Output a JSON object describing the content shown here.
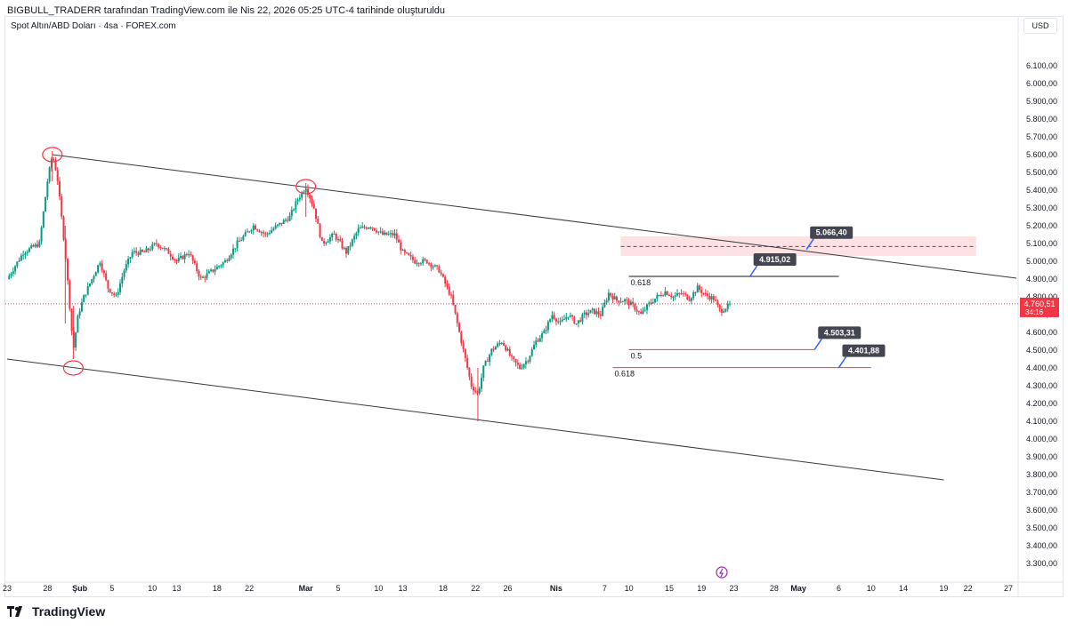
{
  "header": {
    "credit": "BIGBULL_TRADERR tarafından TradingView.com ile Nis 22, 2026 05:25 UTC-4 tarihinde oluşturuldu",
    "symbol_title": "Spot Altın/ABD Doları · 4sa · FOREX.com",
    "currency": "USD"
  },
  "footer": {
    "brand": "TradingView"
  },
  "colors": {
    "up": "#089981",
    "down": "#f23645",
    "trendline": "#3a3a3a",
    "zone_fill": "#fde2e4",
    "label_bg": "#434651",
    "label_pointer": "#2962ff",
    "price_tag": "#f23645",
    "grid_text": "#131722"
  },
  "chart_data": {
    "type": "candlestick",
    "title": "",
    "xlabel": "",
    "ylabel": "",
    "ylim": [
      3250,
      6200
    ],
    "grid": false,
    "y_ticks": [
      "6.100,00",
      "6.000,00",
      "5.900,00",
      "5.800,00",
      "5.700,00",
      "5.600,00",
      "5.500,00",
      "5.400,00",
      "5.300,00",
      "5.200,00",
      "5.100,00",
      "5.000,00",
      "4.900,00",
      "4.800,00",
      "4.700,00",
      "4.600,00",
      "4.500,00",
      "4.400,00",
      "4.300,00",
      "4.200,00",
      "4.100,00",
      "4.000,00",
      "3.900,00",
      "3.800,00",
      "3.700,00",
      "3.600,00",
      "3.500,00",
      "3.400,00",
      "3.300,00"
    ],
    "x_ticks": [
      {
        "label": "23",
        "day": 0
      },
      {
        "label": "28",
        "day": 5
      },
      {
        "label": "Şub",
        "day": 9,
        "bold": true
      },
      {
        "label": "5",
        "day": 13
      },
      {
        "label": "10",
        "day": 18
      },
      {
        "label": "13",
        "day": 21
      },
      {
        "label": "18",
        "day": 26
      },
      {
        "label": "22",
        "day": 30
      },
      {
        "label": "Mar",
        "day": 37,
        "bold": true
      },
      {
        "label": "5",
        "day": 41
      },
      {
        "label": "10",
        "day": 46
      },
      {
        "label": "13",
        "day": 49
      },
      {
        "label": "18",
        "day": 54
      },
      {
        "label": "22",
        "day": 58
      },
      {
        "label": "26",
        "day": 62
      },
      {
        "label": "Nis",
        "day": 68,
        "bold": true
      },
      {
        "label": "7",
        "day": 74
      },
      {
        "label": "10",
        "day": 77
      },
      {
        "label": "15",
        "day": 82
      },
      {
        "label": "19",
        "day": 86
      },
      {
        "label": "23",
        "day": 90
      },
      {
        "label": "28",
        "day": 95
      },
      {
        "label": "May",
        "day": 98,
        "bold": true
      },
      {
        "label": "6",
        "day": 103
      },
      {
        "label": "10",
        "day": 107
      },
      {
        "label": "14",
        "day": 111
      },
      {
        "label": "19",
        "day": 116
      },
      {
        "label": "22",
        "day": 119
      },
      {
        "label": "27",
        "day": 124
      }
    ],
    "price_path": [
      [
        0,
        4900
      ],
      [
        2,
        5050
      ],
      [
        4,
        5100
      ],
      [
        5,
        5450
      ],
      [
        5.6,
        5600
      ],
      [
        6.2,
        5480
      ],
      [
        7.2,
        5050
      ],
      [
        8.2,
        4500
      ],
      [
        8.8,
        4700
      ],
      [
        9.5,
        4800
      ],
      [
        10.5,
        4900
      ],
      [
        11.5,
        5000
      ],
      [
        12.5,
        4850
      ],
      [
        13.5,
        4800
      ],
      [
        14.5,
        4950
      ],
      [
        15.5,
        5050
      ],
      [
        17,
        5050
      ],
      [
        18.5,
        5100
      ],
      [
        20,
        5050
      ],
      [
        21,
        5000
      ],
      [
        22.5,
        5050
      ],
      [
        24,
        4900
      ],
      [
        25.5,
        4950
      ],
      [
        27,
        5000
      ],
      [
        28.5,
        5100
      ],
      [
        29.5,
        5150
      ],
      [
        30.5,
        5200
      ],
      [
        32,
        5150
      ],
      [
        33.5,
        5200
      ],
      [
        35,
        5250
      ],
      [
        36,
        5350
      ],
      [
        37,
        5420
      ],
      [
        38,
        5300
      ],
      [
        39,
        5100
      ],
      [
        40.5,
        5150
      ],
      [
        42,
        5050
      ],
      [
        43.5,
        5180
      ],
      [
        45,
        5200
      ],
      [
        46.5,
        5150
      ],
      [
        48,
        5150
      ],
      [
        49,
        5050
      ],
      [
        50.5,
        5000
      ],
      [
        52,
        5000
      ],
      [
        53.5,
        4950
      ],
      [
        55,
        4800
      ],
      [
        56.5,
        4500
      ],
      [
        57.5,
        4300
      ],
      [
        58.3,
        4250
      ],
      [
        59,
        4400
      ],
      [
        60,
        4500
      ],
      [
        61.3,
        4550
      ],
      [
        62.5,
        4450
      ],
      [
        63.5,
        4400
      ],
      [
        64.5,
        4450
      ],
      [
        65.5,
        4550
      ],
      [
        66.5,
        4600
      ],
      [
        67.5,
        4700
      ],
      [
        68.5,
        4650
      ],
      [
        69.5,
        4700
      ],
      [
        70.5,
        4650
      ],
      [
        71.5,
        4700
      ],
      [
        72.5,
        4720
      ],
      [
        73.5,
        4700
      ],
      [
        74.5,
        4820
      ],
      [
        75.5,
        4780
      ],
      [
        76.5,
        4780
      ],
      [
        77.5,
        4750
      ],
      [
        78.5,
        4700
      ],
      [
        79.5,
        4760
      ],
      [
        80.5,
        4800
      ],
      [
        81.5,
        4830
      ],
      [
        82.5,
        4800
      ],
      [
        83.5,
        4820
      ],
      [
        84.5,
        4790
      ],
      [
        85.5,
        4850
      ],
      [
        86.5,
        4810
      ],
      [
        87.5,
        4790
      ],
      [
        88.3,
        4720
      ],
      [
        89,
        4740
      ],
      [
        89.7,
        4760
      ]
    ],
    "wicks": [
      {
        "day": 5.6,
        "high": 5620,
        "low": 5450
      },
      {
        "day": 7.2,
        "high": 5200,
        "low": 4650
      },
      {
        "day": 8.2,
        "high": 4750,
        "low": 4450
      },
      {
        "day": 37,
        "high": 5440,
        "low": 5250
      },
      {
        "day": 58.3,
        "high": 4400,
        "low": 4100
      }
    ],
    "trendlines": [
      {
        "from": [
          5.6,
          5600
        ],
        "to": [
          125,
          4905
        ]
      },
      {
        "from": [
          0,
          4450
        ],
        "to": [
          116,
          3770
        ]
      }
    ],
    "zone": {
      "from_day": 76,
      "to_day": 120,
      "top": 5140,
      "bottom": 5030,
      "midline": 5083
    },
    "levels": [
      {
        "name": "fib-0618-upper",
        "label": "0.618",
        "value": 4915.02,
        "from_day": 77,
        "to_day": 103,
        "color": "#131722",
        "tag": "4.915,02",
        "tag_day": 92
      },
      {
        "name": "fib-05",
        "label": "0.5",
        "value": 4503.31,
        "from_day": 77,
        "to_day": 100,
        "color": "#f23645",
        "tag": "4.503,31",
        "tag_day": 100
      },
      {
        "name": "fib-0618-lower",
        "label": "0.618",
        "value": 4401.88,
        "from_day": 75,
        "to_day": 107,
        "color": "#f23645",
        "tag": "4.401,88",
        "tag_day": 103
      }
    ],
    "zone_tag": {
      "text": "5.066,40",
      "value": 5066.4,
      "day": 99
    },
    "current_price": {
      "value": 4760.51,
      "text": "4.760,51",
      "countdown": "34:16"
    }
  }
}
